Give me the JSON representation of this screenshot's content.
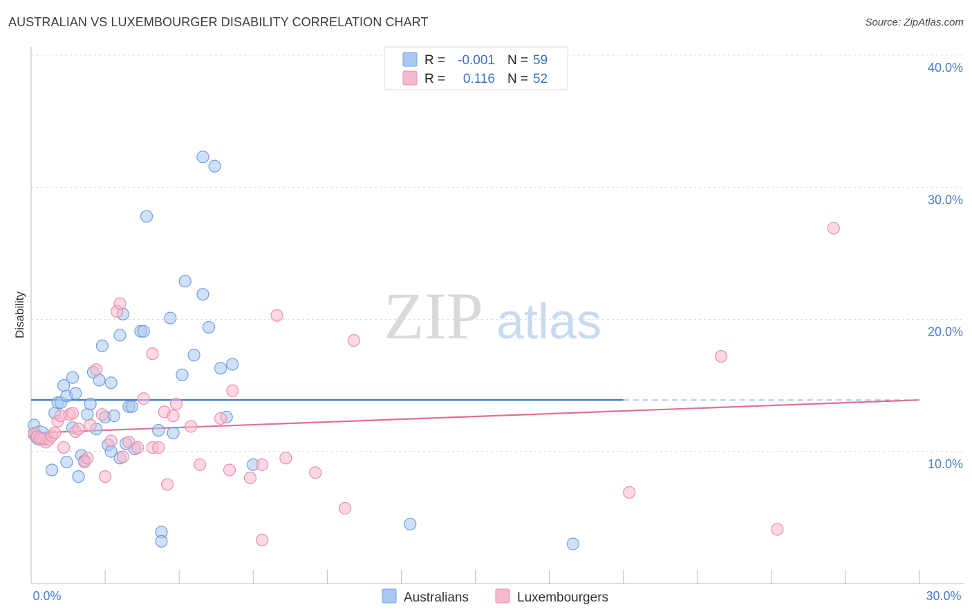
{
  "title": "AUSTRALIAN VS LUXEMBOURGER DISABILITY CORRELATION CHART",
  "source": "Source: ZipAtlas.com",
  "watermark": {
    "zip": "ZIP",
    "atlas": "atlas"
  },
  "colors": {
    "blue_fill": "#a9c8f0",
    "blue_stroke": "#6e9fdc",
    "blue_line": "#2f6fc9",
    "pink_fill": "#f7b8cb",
    "pink_stroke": "#ea8fac",
    "pink_line": "#e36d96",
    "grid": "#dcdcdc",
    "tick_text": "#4a7cc9"
  },
  "legend": {
    "rows": [
      {
        "r_label": "R =",
        "r_value": "-0.001",
        "n_label": "N =",
        "n_value": "59"
      },
      {
        "r_label": "R =",
        "r_value": "0.116",
        "n_label": "N =",
        "n_value": "52"
      }
    ]
  },
  "chart_data": {
    "type": "scatter",
    "title": "AUSTRALIAN VS LUXEMBOURGER DISABILITY CORRELATION CHART",
    "xlabel": "",
    "ylabel": "Disability",
    "xlim": [
      0,
      30
    ],
    "ylim": [
      0,
      40
    ],
    "x_tick_labels": [
      "0.0%",
      "30.0%"
    ],
    "y_ticks": [
      10,
      20,
      30,
      40
    ],
    "y_tick_labels": [
      "10.0%",
      "20.0%",
      "30.0%",
      "40.0%"
    ],
    "grid": true,
    "legend_position": "top-center",
    "series": [
      {
        "name": "Australians",
        "r": -0.001,
        "n": 59,
        "trend": {
          "x0": 0,
          "y0": 13.9,
          "x1": 20,
          "y1": 13.9,
          "dashed_to": 30
        },
        "points": [
          [
            0.1,
            12.0
          ],
          [
            0.1,
            11.3
          ],
          [
            0.2,
            11.2
          ],
          [
            0.3,
            11.0
          ],
          [
            0.4,
            11.0
          ],
          [
            0.5,
            11.0
          ],
          [
            0.7,
            8.6
          ],
          [
            0.8,
            12.9
          ],
          [
            0.9,
            13.7
          ],
          [
            1.0,
            13.7
          ],
          [
            1.1,
            15.0
          ],
          [
            1.2,
            14.2
          ],
          [
            1.2,
            9.2
          ],
          [
            1.4,
            11.8
          ],
          [
            1.4,
            15.6
          ],
          [
            1.5,
            14.4
          ],
          [
            1.6,
            8.1
          ],
          [
            1.7,
            9.7
          ],
          [
            1.8,
            9.3
          ],
          [
            1.9,
            12.8
          ],
          [
            2.0,
            13.6
          ],
          [
            2.1,
            16.0
          ],
          [
            2.2,
            11.7
          ],
          [
            2.3,
            15.4
          ],
          [
            2.4,
            18.0
          ],
          [
            2.5,
            12.6
          ],
          [
            2.6,
            10.5
          ],
          [
            2.7,
            10.0
          ],
          [
            2.7,
            15.2
          ],
          [
            2.8,
            12.7
          ],
          [
            3.0,
            18.8
          ],
          [
            3.0,
            9.5
          ],
          [
            3.1,
            20.4
          ],
          [
            3.2,
            10.6
          ],
          [
            3.3,
            13.4
          ],
          [
            3.4,
            13.4
          ],
          [
            3.5,
            10.2
          ],
          [
            3.7,
            19.1
          ],
          [
            3.8,
            19.1
          ],
          [
            3.9,
            27.8
          ],
          [
            4.3,
            11.6
          ],
          [
            4.4,
            3.9
          ],
          [
            4.4,
            3.2
          ],
          [
            4.7,
            20.1
          ],
          [
            4.8,
            11.4
          ],
          [
            5.1,
            15.8
          ],
          [
            5.2,
            22.9
          ],
          [
            5.5,
            17.3
          ],
          [
            5.8,
            21.9
          ],
          [
            5.8,
            32.3
          ],
          [
            6.0,
            19.4
          ],
          [
            6.2,
            31.6
          ],
          [
            6.4,
            16.3
          ],
          [
            6.6,
            12.6
          ],
          [
            6.8,
            16.6
          ],
          [
            7.5,
            9.0
          ],
          [
            12.8,
            4.5
          ],
          [
            18.3,
            3.0
          ],
          [
            0.3,
            11.2
          ]
        ]
      },
      {
        "name": "Luxembourgers",
        "r": 0.116,
        "n": 52,
        "trend": {
          "x0": 0,
          "y0": 11.4,
          "x1": 30,
          "y1": 13.9
        },
        "points": [
          [
            0.1,
            11.4
          ],
          [
            0.2,
            11.1
          ],
          [
            0.4,
            10.9
          ],
          [
            0.5,
            10.7
          ],
          [
            0.6,
            10.9
          ],
          [
            0.7,
            11.2
          ],
          [
            0.8,
            11.4
          ],
          [
            0.9,
            12.3
          ],
          [
            1.0,
            12.7
          ],
          [
            1.1,
            10.3
          ],
          [
            1.3,
            12.8
          ],
          [
            1.4,
            12.9
          ],
          [
            1.5,
            11.5
          ],
          [
            1.6,
            11.7
          ],
          [
            1.8,
            9.2
          ],
          [
            1.9,
            9.5
          ],
          [
            2.0,
            12.0
          ],
          [
            2.2,
            16.2
          ],
          [
            2.4,
            12.8
          ],
          [
            2.5,
            8.1
          ],
          [
            2.7,
            10.8
          ],
          [
            2.9,
            20.6
          ],
          [
            3.0,
            21.2
          ],
          [
            3.1,
            9.6
          ],
          [
            3.3,
            10.7
          ],
          [
            3.6,
            10.3
          ],
          [
            3.8,
            14.0
          ],
          [
            4.1,
            10.3
          ],
          [
            4.1,
            17.4
          ],
          [
            4.3,
            10.3
          ],
          [
            4.5,
            13.0
          ],
          [
            4.6,
            7.5
          ],
          [
            4.8,
            12.7
          ],
          [
            4.9,
            13.6
          ],
          [
            5.4,
            11.9
          ],
          [
            5.7,
            9.0
          ],
          [
            6.4,
            12.5
          ],
          [
            6.7,
            8.6
          ],
          [
            6.8,
            14.6
          ],
          [
            7.4,
            8.0
          ],
          [
            7.8,
            9.0
          ],
          [
            7.8,
            3.3
          ],
          [
            8.3,
            20.3
          ],
          [
            8.6,
            9.5
          ],
          [
            9.6,
            8.4
          ],
          [
            10.6,
            5.7
          ],
          [
            10.9,
            18.4
          ],
          [
            20.2,
            6.9
          ],
          [
            23.3,
            17.2
          ],
          [
            25.2,
            4.1
          ],
          [
            27.1,
            26.9
          ],
          [
            0.3,
            11.0
          ]
        ]
      }
    ]
  },
  "bottom_legend": [
    "Australians",
    "Luxembourgers"
  ]
}
